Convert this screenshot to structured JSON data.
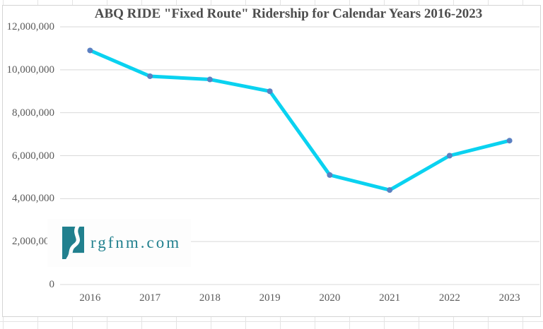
{
  "sheet": {
    "grid_color": "#e4e4e4"
  },
  "chart": {
    "background": "#ffffff",
    "border_color": "#d4d4d4",
    "title_color": "#4d4d4d",
    "tick_color": "#595959"
  },
  "watermark": {
    "text": "rgfnm.com",
    "color": "#21808e",
    "logo": "new-mexico-rio-grande-logo"
  },
  "chart_data": {
    "type": "line",
    "title": "ABQ RIDE \"Fixed Route\" Ridership for Calendar Years 2016-2023",
    "categories": [
      "2016",
      "2017",
      "2018",
      "2019",
      "2020",
      "2021",
      "2022",
      "2023"
    ],
    "values": [
      10900000,
      9700000,
      9550000,
      9000000,
      5100000,
      4400000,
      6000000,
      6700000
    ],
    "xlabel": "",
    "ylabel": "",
    "ylim": [
      0,
      12000000
    ],
    "y_ticks": [
      0,
      2000000,
      4000000,
      6000000,
      8000000,
      10000000,
      12000000
    ],
    "y_tick_labels": [
      "0",
      "2,000,000",
      "4,000,000",
      "6,000,000",
      "8,000,000",
      "10,000,000",
      "12,000,000"
    ],
    "grid": "horizontal",
    "legend": "none",
    "line_color": "#0ad2f0",
    "marker_color": "#5b80c2",
    "marker": "circle",
    "grid_color": "#d9d9d9"
  }
}
